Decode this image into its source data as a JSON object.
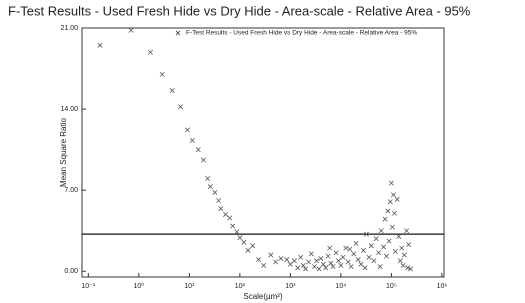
{
  "chart_data": {
    "type": "scatter",
    "title": "F-Test Results - Used Fresh Hide vs Dry Hide - Area-scale - Relative Area -   95%",
    "x_label": "Scale(µm²)",
    "y_label": "Mean Square Ratio",
    "log_x": true,
    "threshold": 3.2,
    "legend_position": "top",
    "series": [
      {
        "name": "F-Test Results - Used Fresh Hide vs Dry Hide - Area-scale - Relative Area - 95%",
        "color": "#555555",
        "x": [
          0.17,
          0.7,
          1.7,
          2.9,
          4.6,
          6.7,
          9.2,
          11.5,
          15,
          19,
          23,
          26,
          32,
          38,
          42,
          52,
          63,
          72,
          87,
          100,
          120,
          145,
          180,
          235,
          295,
          410,
          510,
          650,
          850,
          1000,
          1200,
          1400,
          1600,
          1800,
          2000,
          2300,
          2600,
          3000,
          3300,
          3700,
          4000,
          4500,
          5000,
          5600,
          6300,
          7000,
          8000,
          9000,
          10000,
          11000,
          12500,
          14000,
          16000,
          18000,
          20000,
          22000,
          25000,
          28000,
          32000,
          36000,
          40000,
          45000,
          50000,
          56000,
          63000,
          70000,
          75000,
          80000,
          85000,
          90000,
          95000,
          100000,
          105000,
          110000,
          115000,
          120000,
          130000,
          140000,
          150000,
          160000,
          170000,
          180000,
          200000,
          210000,
          220000,
          240000,
          60000,
          30000,
          15000,
          6000
        ],
        "values": [
          19.5,
          20.8,
          18.9,
          17.0,
          15.6,
          14.2,
          12.2,
          11.3,
          10.5,
          9.6,
          8.0,
          7.3,
          6.8,
          6.1,
          5.4,
          4.9,
          4.6,
          3.9,
          3.4,
          2.9,
          2.5,
          1.8,
          2.2,
          1.0,
          0.5,
          1.4,
          0.8,
          1.1,
          1.0,
          0.6,
          0.9,
          0.3,
          1.2,
          0.5,
          0.2,
          0.8,
          1.5,
          0.4,
          0.9,
          0.2,
          1.1,
          0.6,
          0.3,
          1.3,
          0.7,
          0.4,
          1.6,
          0.9,
          0.5,
          1.2,
          2.0,
          0.8,
          0.4,
          1.5,
          2.4,
          1.0,
          0.6,
          1.8,
          3.2,
          1.2,
          2.2,
          0.9,
          2.8,
          1.6,
          3.5,
          2.1,
          4.5,
          1.3,
          5.2,
          2.6,
          6.0,
          7.6,
          3.8,
          6.6,
          5.0,
          1.7,
          6.2,
          3.0,
          0.9,
          2.0,
          0.5,
          1.4,
          3.5,
          0.3,
          2.3,
          0.2,
          0.4,
          0.3,
          1.9,
          2.0
        ]
      }
    ],
    "xlim": [
      0.075,
      1100000
    ],
    "xticks": [
      {
        "value": 0.1,
        "label": "10⁻¹"
      },
      {
        "value": 1,
        "label": "10⁰"
      },
      {
        "value": 10,
        "label": "10¹"
      },
      {
        "value": 100,
        "label": "10²"
      },
      {
        "value": 1000,
        "label": "10³"
      },
      {
        "value": 10000,
        "label": "10⁴"
      },
      {
        "value": 100000,
        "label": "10⁵"
      },
      {
        "value": 1000000,
        "label": "10⁶"
      }
    ],
    "ylim": [
      -0.5,
      21
    ],
    "yticks": [
      {
        "value": 0,
        "label": "0.00"
      },
      {
        "value": 7,
        "label": "7.00"
      },
      {
        "value": 14,
        "label": "14.00"
      },
      {
        "value": 21,
        "label": "21.00"
      }
    ]
  }
}
